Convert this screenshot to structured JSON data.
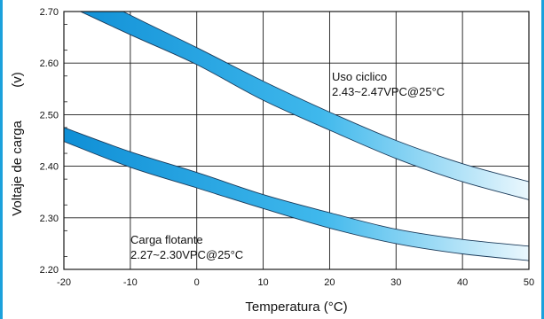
{
  "chart_data": {
    "type": "area",
    "xlabel": "Temperatura (°C)",
    "ylabel": "Voltaje de carga (v)",
    "ylabel_parts": [
      "Voltaje  de  carga",
      "(v)"
    ],
    "xlim": [
      -20,
      50
    ],
    "ylim": [
      2.2,
      2.7
    ],
    "x_ticks": [
      -20,
      -10,
      0,
      10,
      20,
      30,
      40,
      50
    ],
    "x_tick_labels": [
      "-20",
      "-10",
      "0",
      "10",
      "20",
      "30",
      "40",
      "50"
    ],
    "y_ticks": [
      2.2,
      2.3,
      2.4,
      2.5,
      2.6,
      2.7
    ],
    "y_tick_labels": [
      "2.20",
      "2.30",
      "2.40",
      "2.50",
      "2.60",
      "2.70"
    ],
    "grid": true,
    "series": [
      {
        "name": "Uso ciclico",
        "x": [
          -20,
          -10,
          0,
          10,
          20,
          30,
          40,
          50
        ],
        "upper": [
          2.76,
          2.693,
          2.63,
          2.565,
          2.505,
          2.45,
          2.405,
          2.37
        ],
        "lower": [
          2.715,
          2.655,
          2.597,
          2.528,
          2.47,
          2.415,
          2.37,
          2.335
        ]
      },
      {
        "name": "Carga flotante",
        "x": [
          -20,
          -10,
          0,
          10,
          20,
          30,
          40,
          50
        ],
        "upper": [
          2.475,
          2.428,
          2.388,
          2.345,
          2.31,
          2.278,
          2.258,
          2.245
        ],
        "lower": [
          2.448,
          2.398,
          2.358,
          2.318,
          2.28,
          2.25,
          2.23,
          2.217
        ]
      }
    ],
    "annotations": [
      {
        "lines": [
          "Uso ciclico",
          "2.43~2.47VPC@25°C"
        ]
      },
      {
        "lines": [
          "Carga flotante",
          "2.27~2.30VPC@25°C"
        ]
      }
    ],
    "colors": {
      "band_start": "#0f8fd6",
      "band_mid": "#3fb8ec",
      "band_end": "#eaf7fd",
      "band_edge": "#1c3b5a",
      "grid": "#1a1a1a",
      "border": "#1ba1dc"
    }
  }
}
